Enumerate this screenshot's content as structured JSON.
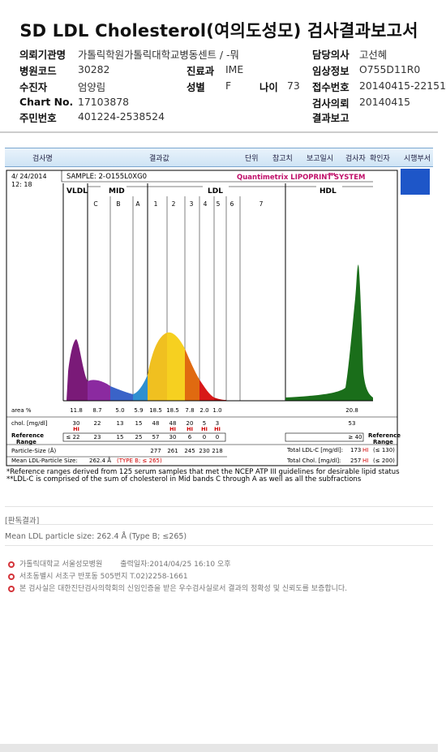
{
  "title": "SD LDL Cholesterol(여의도성모) 검사결과보고서",
  "info": {
    "institution_label": "의뢰기관명",
    "institution_value": "가톨릭학원가톨릭대학교병동센트 / -뭐",
    "doctor_label": "담당의사",
    "doctor_value": "고선혜",
    "hospital_code_label": "병원코드",
    "hospital_code_value": "30282",
    "dept_label": "진료과",
    "dept_value": "IME",
    "clinical_label": "임상정보",
    "clinical_value": "O755D11R0",
    "patient_label": "수진자",
    "patient_value": "엄양림",
    "sex_label": "성별",
    "sex_value": "F",
    "age_label": "나이",
    "age_value": "73",
    "receipt_label": "접수번호",
    "receipt_value": "20140415-22151",
    "chart_label": "Chart No.",
    "chart_value": "17103878",
    "request_label": "검사의뢰",
    "request_value": "20140415",
    "id_label": "주민번호",
    "id_value": "401224-2538524",
    "result_label": "결과보고",
    "result_value": ""
  },
  "table_header": {
    "test": "검사명",
    "result": "결과값",
    "unit": "단위",
    "ref": "참고치",
    "report_date": "보고일시",
    "tester": "검사자",
    "confirmer": "확인자",
    "department": "시행부서"
  },
  "lipoprint": {
    "date": "4/ 24/2014",
    "time": "12: 18",
    "sample": "SAMPLE:  2-O155L0XG0",
    "brand": "Quantimetrix LIPOPRINT",
    "brand_tm": "TM",
    "brand_suffix": " SYSTEM",
    "groups": [
      "VLDL",
      "MID",
      "LDL",
      "HDL"
    ],
    "bands": [
      "C",
      "B",
      "A",
      "1",
      "2",
      "3",
      "4",
      "5",
      "6",
      "7"
    ],
    "area_label": "area %",
    "chol_label": "chol. [mg/dl]",
    "ref_label": "Reference\nRange",
    "size_label": "Particle-Size (Å)",
    "mean_label": "Mean LDL-Particle Size:",
    "mean_value": "262.4 Å",
    "mean_type": "(TYPE B; ≤ 265)",
    "area": [
      "11.8",
      "8.7",
      "5.0",
      "5.9",
      "18.5",
      "18.5",
      "7.8",
      "2.0",
      "1.0",
      "20.8"
    ],
    "chol": [
      "30",
      "22",
      "13",
      "15",
      "48",
      "48",
      "20",
      "5",
      "3",
      "53"
    ],
    "hi_flags": [
      true,
      false,
      false,
      false,
      false,
      true,
      true,
      true,
      true,
      false
    ],
    "hi": "HI",
    "ref": [
      "≤ 22",
      "23",
      "15",
      "25",
      "57",
      "30",
      "6",
      "0",
      "0",
      "≥ 40"
    ],
    "sizes": [
      "277",
      "261",
      "245",
      "230",
      "218"
    ],
    "total_ldl_label": "Total LDL-C [mg/dl]:",
    "total_ldl_value": "173",
    "total_ldl_ref": "(≤ 130)",
    "total_chol_label": "Total Chol. [mg/dl]:",
    "total_chol_value": "257",
    "total_chol_ref": "(≤ 200)",
    "reference_range_right": "Reference\nRange",
    "note1": "*Reference ranges derived from 125 serum samples that met the NCEP ATP III guidelines for desirable lipid status",
    "note2": "**LDL-C is comprised of the sum of cholesterol in Mid bands C through A as well as all the subfractions"
  },
  "result_section": {
    "heading": "[판독결과]",
    "text": "Mean LDL particle size: 262.4 Å (Type B; ≤265)"
  },
  "footer": {
    "line1_name": "가톨릭대학교 서울성모병원",
    "line1_print": "출력일자:2014/04/25 16:10 오후",
    "line2": "서초동별시 서초구 반포동 505번지 T.02)2258-1661",
    "line3": "본 검사실은 대한진단검사의학회의 신임인증을 받은 우수검사실로서 결과의 정확성 및 신뢰도를 보증합니다."
  },
  "colors": {
    "vldl": "#7a1a78",
    "mid_c": "#8b2aa0",
    "mid_b": "#3a63c8",
    "mid_a": "#2f8fd0",
    "ldl1": "#f0c020",
    "ldl2": "#f6d020",
    "ldl3": "#e06a10",
    "ldl4": "#d81818",
    "ldl5": "#c01010",
    "hdl": "#1a6e1a",
    "hi": "#d00000"
  }
}
